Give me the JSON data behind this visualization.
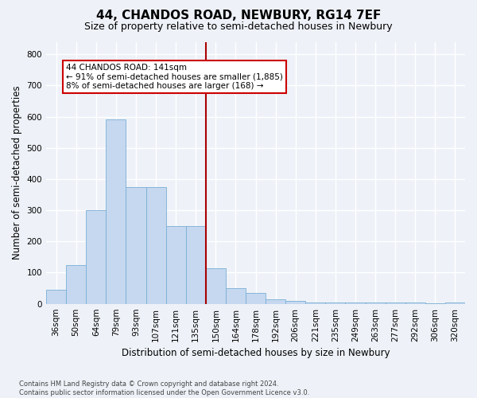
{
  "title": "44, CHANDOS ROAD, NEWBURY, RG14 7EF",
  "subtitle": "Size of property relative to semi-detached houses in Newbury",
  "xlabel": "Distribution of semi-detached houses by size in Newbury",
  "ylabel": "Number of semi-detached properties",
  "bin_labels": [
    "36sqm",
    "50sqm",
    "64sqm",
    "79sqm",
    "93sqm",
    "107sqm",
    "121sqm",
    "135sqm",
    "150sqm",
    "164sqm",
    "178sqm",
    "192sqm",
    "206sqm",
    "221sqm",
    "235sqm",
    "249sqm",
    "263sqm",
    "277sqm",
    "292sqm",
    "306sqm",
    "320sqm"
  ],
  "bar_heights": [
    45,
    125,
    300,
    590,
    375,
    375,
    248,
    248,
    115,
    50,
    35,
    15,
    10,
    5,
    5,
    5,
    5,
    5,
    5,
    2,
    5
  ],
  "bar_color": "#c5d8ef",
  "bar_edge_color": "#7aafd4",
  "highlight_line_color": "#aa0000",
  "annotation_title": "44 CHANDOS ROAD: 141sqm",
  "annotation_line1": "← 91% of semi-detached houses are smaller (1,885)",
  "annotation_line2": "8% of semi-detached houses are larger (168) →",
  "annotation_box_color": "#ffffff",
  "annotation_box_edge": "#cc0000",
  "ylim": [
    0,
    840
  ],
  "yticks": [
    0,
    100,
    200,
    300,
    400,
    500,
    600,
    700,
    800
  ],
  "footer_line1": "Contains HM Land Registry data © Crown copyright and database right 2024.",
  "footer_line2": "Contains public sector information licensed under the Open Government Licence v3.0.",
  "bg_color": "#eef2f8",
  "plot_bg_color": "#eef2f8",
  "grid_color": "#ffffff",
  "title_fontsize": 11,
  "subtitle_fontsize": 9,
  "axis_label_fontsize": 8.5,
  "tick_fontsize": 7.5,
  "annotation_fontsize": 7.5,
  "red_line_index": 7.5
}
